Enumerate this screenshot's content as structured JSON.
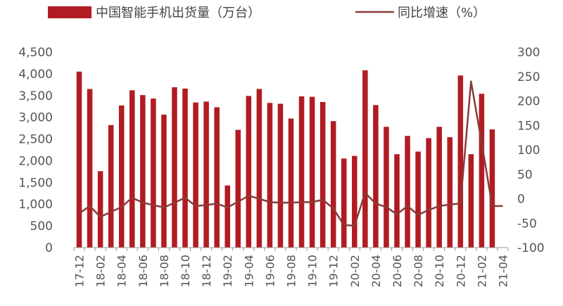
{
  "chart_data": {
    "type": "bar",
    "legend_position": "top",
    "grid": false,
    "categories": [
      "17-12",
      "18-01",
      "18-02",
      "18-03",
      "18-04",
      "18-05",
      "18-06",
      "18-07",
      "18-08",
      "18-09",
      "18-10",
      "18-11",
      "18-12",
      "19-01",
      "19-02",
      "19-03",
      "19-04",
      "19-05",
      "19-06",
      "19-07",
      "19-08",
      "19-09",
      "19-10",
      "19-11",
      "19-12",
      "20-01",
      "20-02",
      "20-03",
      "20-04",
      "20-05",
      "20-06",
      "20-07",
      "20-08",
      "20-09",
      "20-10",
      "20-11",
      "20-12",
      "21-01",
      "21-02",
      "21-03",
      "21-04"
    ],
    "x_tick_labels": [
      "17-12",
      "18-02",
      "18-04",
      "18-06",
      "18-08",
      "18-10",
      "18-12",
      "19-02",
      "19-04",
      "19-06",
      "19-08",
      "19-10",
      "19-12",
      "20-02",
      "20-04",
      "20-06",
      "20-08",
      "20-10",
      "20-12",
      "21-02",
      "21-04"
    ],
    "series": [
      {
        "name": "中国智能手机出货量（万台）",
        "type": "bar",
        "axis": "left",
        "color": "#b01c21",
        "values": [
          4050,
          3650,
          1760,
          2820,
          3270,
          3620,
          3510,
          3430,
          3060,
          3690,
          3660,
          3340,
          3360,
          3230,
          1430,
          2710,
          3490,
          3650,
          3330,
          3310,
          2970,
          3480,
          3470,
          3350,
          2910,
          2050,
          2110,
          4080,
          3280,
          2780,
          2150,
          2570,
          2210,
          2520,
          2780,
          2540,
          3960,
          2150,
          3540,
          2720,
          0
        ]
      },
      {
        "name": "同比增速（%）",
        "type": "line",
        "axis": "right",
        "color": "#8b3a3a",
        "values": [
          -30,
          -15,
          -37,
          -27,
          -17,
          2,
          -8,
          -13,
          -18,
          -8,
          2,
          -15,
          -13,
          -10,
          -18,
          -6,
          6,
          0,
          -7,
          -8,
          -8,
          -7,
          -7,
          -2,
          -20,
          -54,
          -55,
          12,
          -10,
          -17,
          -32,
          -15,
          -33,
          -23,
          -15,
          -12,
          -10,
          240,
          115,
          -15,
          -15
        ]
      }
    ],
    "left_axis": {
      "min": 0,
      "max": 4500,
      "ticks": [
        "0",
        "500",
        "1,000",
        "1,500",
        "2,000",
        "2,500",
        "3,000",
        "3,500",
        "4,000",
        "4,500"
      ]
    },
    "right_axis": {
      "min": -100,
      "max": 300,
      "ticks": [
        "-100",
        "-50",
        "0",
        "50",
        "100",
        "150",
        "200",
        "250",
        "300"
      ]
    }
  }
}
